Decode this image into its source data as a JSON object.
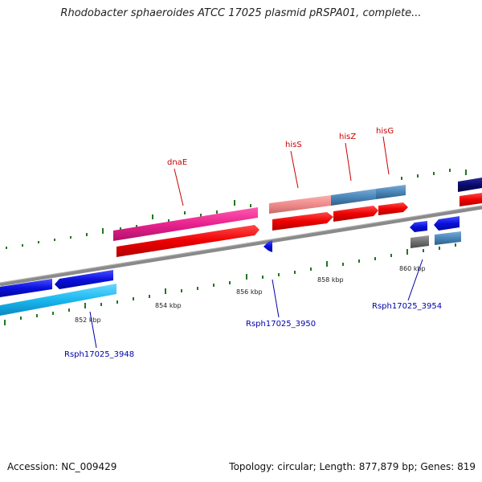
{
  "header": {
    "title": "Rhodobacter sphaeroides ATCC 17025 plasmid pRSPA01, complete..."
  },
  "footer": {
    "accession": "Accession: NC_009429",
    "summary": "Topology: circular; Length: 877,879 bp; Genes: 819"
  },
  "ruler": {
    "labels": [
      "852 kbp",
      "854 kbp",
      "856 kbp",
      "858 kbp",
      "860 kbp"
    ]
  },
  "genes_top": [
    {
      "name": "dnaE"
    },
    {
      "name": "hisS"
    },
    {
      "name": "hisZ"
    },
    {
      "name": "hisG"
    }
  ],
  "genes_bottom": [
    {
      "name": "Rsph17025_3948"
    },
    {
      "name": "Rsph17025_3950"
    },
    {
      "name": "Rsph17025_3954"
    }
  ],
  "colors": {
    "backbone": "#8a8a8a",
    "red_gene": "#ee0000",
    "pink_gene": "#e8228e",
    "salmon_gene": "#f08b8b",
    "steel_gene": "#4a86b8",
    "blue_gene": "#0a10dd",
    "cyan_gene": "#1ab8f0",
    "navy_gene": "#0a0a70",
    "gray_gene": "#707070",
    "tick_green": "#227722",
    "top_label": "#cc0000",
    "bottom_label": "#0000aa"
  }
}
